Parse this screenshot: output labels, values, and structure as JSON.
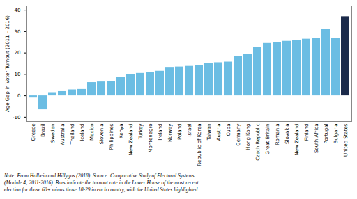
{
  "chart_data": {
    "type": "bar",
    "categories": [
      "Greece",
      "Brazil",
      "Sweden",
      "Australia",
      "Thailand",
      "Iceland",
      "Mexico",
      "Slovenia",
      "Philippines",
      "Kenya",
      "New Zealand",
      "Turkey",
      "Montenegro",
      "Ireland",
      "Norway",
      "Poland",
      "Israel",
      "Republic of Korea",
      "Taiwan",
      "Austria",
      "Cuba",
      "Germany",
      "Hong Kong",
      "Czech Republic",
      "Great Britain",
      "Romania",
      "Slovakia",
      "New Zealand",
      "Finland",
      "South Africa",
      "Portugal",
      "Bulgaria",
      "United States"
    ],
    "values": [
      -1.0,
      -6.5,
      1.5,
      2.0,
      2.8,
      3.0,
      6.2,
      6.5,
      6.8,
      8.8,
      10.0,
      10.5,
      11.0,
      11.5,
      13.0,
      13.5,
      13.8,
      14.2,
      15.0,
      15.5,
      15.8,
      18.5,
      19.5,
      22.5,
      24.5,
      25.0,
      25.5,
      26.0,
      26.5,
      26.8,
      31.0,
      27.0,
      37.0
    ],
    "colors": [
      "#6bbde3",
      "#6bbde3",
      "#6bbde3",
      "#6bbde3",
      "#6bbde3",
      "#6bbde3",
      "#6bbde3",
      "#6bbde3",
      "#6bbde3",
      "#6bbde3",
      "#6bbde3",
      "#6bbde3",
      "#6bbde3",
      "#6bbde3",
      "#6bbde3",
      "#6bbde3",
      "#6bbde3",
      "#6bbde3",
      "#6bbde3",
      "#6bbde3",
      "#6bbde3",
      "#6bbde3",
      "#6bbde3",
      "#6bbde3",
      "#6bbde3",
      "#6bbde3",
      "#6bbde3",
      "#6bbde3",
      "#6bbde3",
      "#6bbde3",
      "#6bbde3",
      "#6bbde3",
      "#1b2a4a"
    ],
    "ylabel": "Age Gap in Voter Turnout (2011 – 2016)",
    "ylim": [
      -12,
      42
    ],
    "yticks": [
      -10,
      0,
      10,
      20,
      30,
      40
    ],
    "grid": false,
    "note": "Note: From Holbein and Hillygus (2018). Source: Comparative Study of Electoral Systems\n(Module 4; 2011-2016). Bars indicate the turnout rate in the Lower House of the most recent\nelection for those 60+ minus those 18-29 in each country, with the United States highlighted."
  }
}
